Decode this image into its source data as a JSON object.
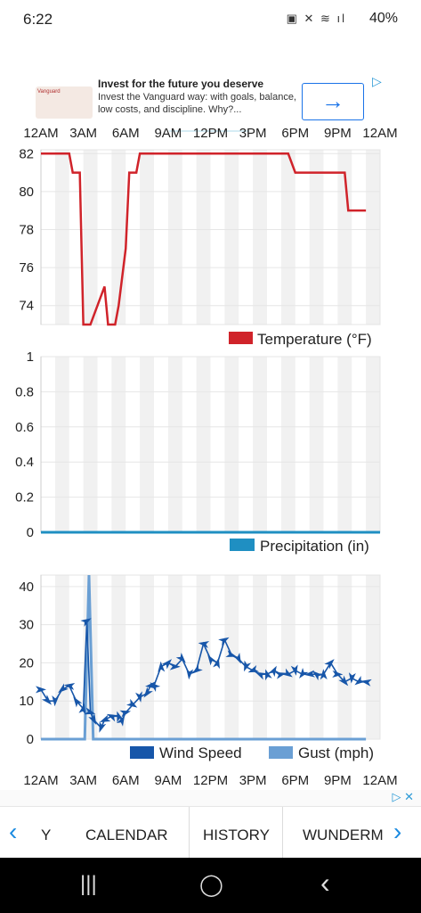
{
  "status": {
    "time": "6:22",
    "battery": "40%",
    "icons": "▣ ✕ ≋ ıl"
  },
  "ad": {
    "title": "Invest for the future you deserve",
    "body": "Invest the Vanguard way: with goals, balance, low costs, and discipline. Why?...",
    "brand": "Vanguard",
    "cta_icon": "arrow-right-icon",
    "adchoices": "▷"
  },
  "colors": {
    "temp": "#d0232a",
    "precip": "#1f8fc2",
    "wind": "#1756a9",
    "gust": "#6a9fd4",
    "band": "#f1f1f1",
    "tab_arrow": "#1a8ae0"
  },
  "time_labels": [
    "12AM",
    "3AM",
    "6AM",
    "9AM",
    "12PM",
    "3PM",
    "6PM",
    "9PM",
    "12AM"
  ],
  "chart_data": [
    {
      "type": "line",
      "series": [
        {
          "name": "Temperature (°F)",
          "x": [
            0,
            0.5,
            1,
            1.5,
            2,
            2.25,
            2.5,
            2.75,
            3,
            3.25,
            3.5,
            4.5,
            4.75,
            5.25,
            5.5,
            6,
            6.25,
            6.75,
            7,
            7.5,
            8,
            9,
            10,
            11,
            12,
            13,
            14,
            15,
            16,
            17,
            17.5,
            18,
            19,
            20,
            21,
            21.5,
            21.75,
            22,
            22.5,
            23
          ],
          "values": [
            82,
            82,
            82,
            82,
            82,
            81,
            81,
            81,
            73,
            73,
            73,
            75,
            73,
            73,
            74,
            77,
            81,
            81,
            82,
            82,
            82,
            82,
            82,
            82,
            82,
            82,
            82,
            82,
            82,
            82,
            82,
            81,
            81,
            81,
            81,
            81,
            79,
            79,
            79,
            79
          ]
        }
      ],
      "yticks": [
        74,
        76,
        78,
        80,
        82
      ],
      "ylim": [
        73,
        82.2
      ]
    },
    {
      "type": "line",
      "series": [
        {
          "name": "Precipitation (in)",
          "values": [
            0,
            0
          ]
        }
      ],
      "yticks": [
        "0",
        "0.2",
        "0.4",
        "0.6",
        "0.8",
        "1"
      ],
      "ylim": [
        0,
        1
      ]
    },
    {
      "type": "line",
      "series": [
        {
          "name": "Wind Speed",
          "x": [
            0,
            0.5,
            1,
            1.5,
            2,
            2.5,
            3,
            3.25,
            3.5,
            3.75,
            4.25,
            4.5,
            5,
            5.5,
            5.75,
            6,
            6.5,
            7,
            7.5,
            7.75,
            8,
            8.5,
            9,
            9.5,
            10,
            10.5,
            11,
            11.5,
            12,
            12.5,
            13,
            13.5,
            14,
            14.5,
            15,
            15.5,
            16,
            16.5,
            17,
            17.5,
            18,
            18.5,
            19,
            19.5,
            20,
            20.5,
            21,
            21.5,
            22,
            22.5,
            23
          ],
          "values": [
            13,
            10,
            10,
            13,
            14,
            10,
            8,
            31,
            7,
            5,
            3,
            5,
            6,
            6,
            5,
            7,
            9,
            11,
            12,
            14,
            14,
            19,
            20,
            19,
            21,
            17,
            18,
            25,
            21,
            20,
            26,
            22,
            21,
            19,
            18,
            17,
            17,
            18,
            17,
            17,
            18,
            17,
            17,
            17,
            17,
            20,
            17,
            15,
            16,
            15,
            15
          ]
        },
        {
          "name": "Gust (mph)",
          "x": [
            0,
            3.1,
            3.4,
            3.7,
            23
          ],
          "values": [
            0,
            0,
            43,
            0,
            0
          ]
        }
      ],
      "legend_units": "(mph)",
      "yticks": [
        0,
        10,
        20,
        30,
        40
      ],
      "ylim": [
        0,
        43
      ]
    }
  ],
  "tabs": {
    "partial_left": "Y",
    "calendar": "CALENDAR",
    "history": "HISTORY",
    "partial_right": "WUNDERM"
  },
  "nav": {
    "recents": "|||",
    "home": "◯",
    "back": "‹"
  }
}
